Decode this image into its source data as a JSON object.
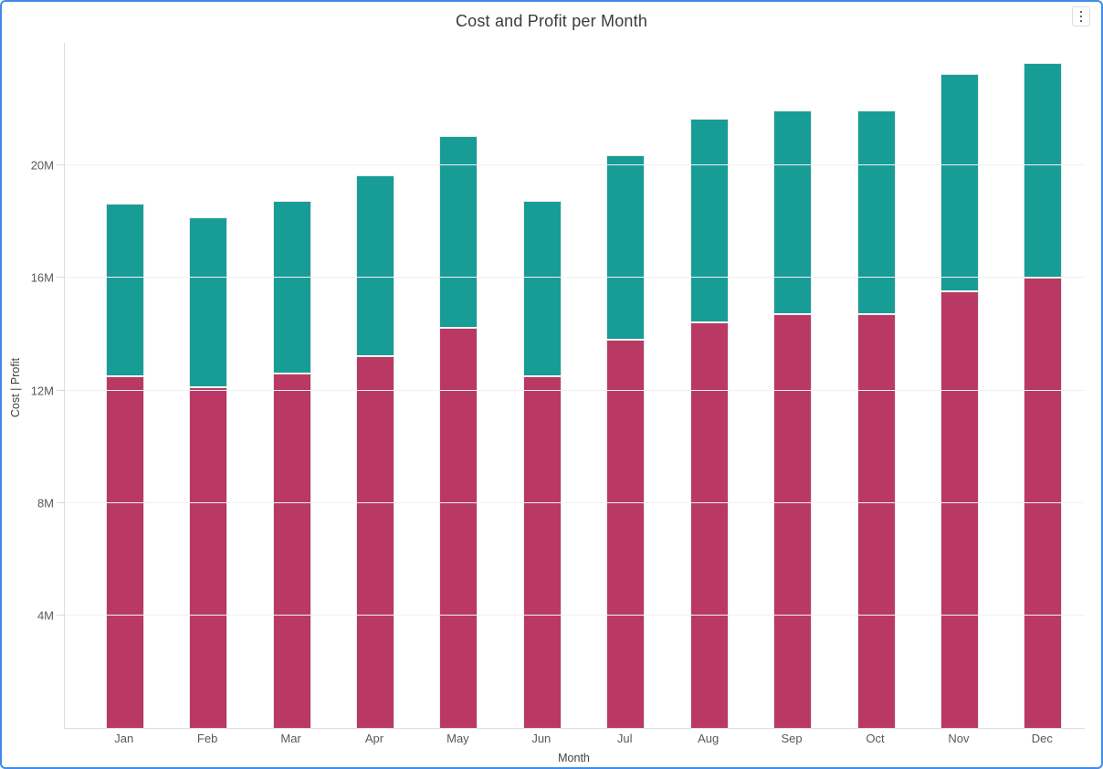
{
  "panel": {
    "menu_tooltip": "Options"
  },
  "colors": {
    "panel_border": "#3e8ceb",
    "cost_bar": "#ba3864",
    "profit_bar": "#179d96",
    "grid_line": "#f1f1f1",
    "axis_line": "#dcdcdc",
    "tick_text": "#595959",
    "title_text": "#3b3b3b",
    "bar_stroke": "#e9e9e9"
  },
  "chart_data": {
    "type": "bar",
    "stacked": true,
    "title": "Cost and Profit per Month",
    "xlabel": "Month",
    "ylabel": "Cost  |  Profit",
    "categories": [
      "Jan",
      "Feb",
      "Mar",
      "Apr",
      "May",
      "Jun",
      "Jul",
      "Aug",
      "Sep",
      "Oct",
      "Nov",
      "Dec"
    ],
    "series": [
      {
        "name": "Cost",
        "color": "#ba3864",
        "stack_order": "bottom",
        "unit": "millions",
        "values": [
          12.5,
          12.1,
          12.6,
          13.2,
          14.2,
          12.5,
          13.8,
          14.4,
          14.7,
          14.7,
          15.5,
          16.0
        ]
      },
      {
        "name": "Profit",
        "color": "#179d96",
        "stack_order": "top",
        "unit": "millions",
        "values": [
          6.1,
          6.0,
          6.1,
          6.4,
          6.8,
          6.2,
          6.5,
          7.2,
          7.2,
          7.2,
          7.7,
          7.6
        ]
      }
    ],
    "stack_totals_millions": [
      18.6,
      18.1,
      18.7,
      19.6,
      21.0,
      18.7,
      20.3,
      21.6,
      21.9,
      21.9,
      23.2,
      23.6
    ],
    "y_ticks": [
      {
        "value": 4,
        "label": "4M"
      },
      {
        "value": 8,
        "label": "8M"
      },
      {
        "value": 12,
        "label": "12M"
      },
      {
        "value": 16,
        "label": "16M"
      },
      {
        "value": 20,
        "label": "20M"
      }
    ],
    "ylim": [
      0,
      24.33
    ],
    "grid": true,
    "legend_position": "none"
  }
}
